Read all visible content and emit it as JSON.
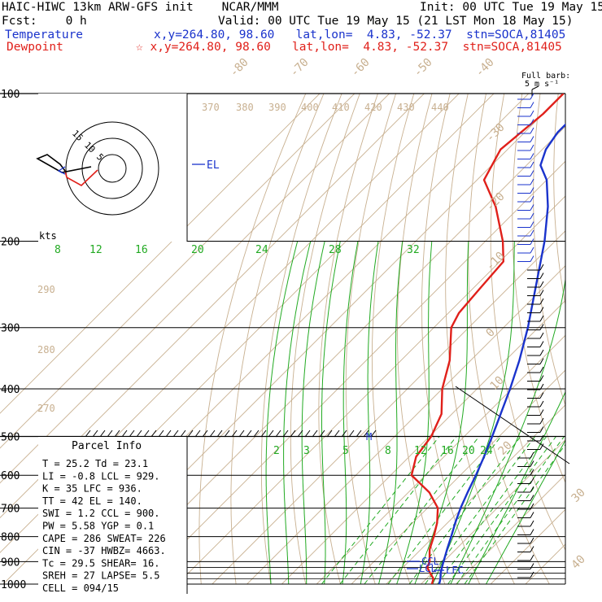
{
  "header": {
    "title": "HAIC-HIWC 13km ARW-GFS init    NCAR/MMM",
    "init": "Init: 00 UTC Tue 19 May 15",
    "fcst": "Fcst:    0 h",
    "valid": "Valid: 00 UTC Tue 19 May 15 (21 LST Mon 18 May 15)",
    "temperature_label": "Temperature",
    "temperature_info": "x,y=264.80, 98.60   lat,lon=  4.83, -52.37  stn=SOCA,81405",
    "dewpoint_label": "Dewpoint",
    "dewpoint_info": "☆ x,y=264.80, 98.60   lat,lon=  4.83, -52.37  stn=SOCA,81405",
    "colors": {
      "temperature": "#1a33cc",
      "dewpoint": "#e0201a",
      "moist_adiabat": "#22aa22",
      "isotherm": "#c8b090"
    }
  },
  "barb_legend": {
    "title": "Full barb:",
    "unit": "5 m s⁻¹"
  },
  "parcel_info": {
    "title": "Parcel Info",
    "rows": [
      "T   =   25.2  Td =  23.1",
      "LI  =   -0.8  LCL =  929.",
      "K   =     35  LFC =  936.",
      "TT  =     42  EL  =  140.",
      "SWI =    1.2  CCL =  900.",
      "PW  =   5.58  YGP =   0.1",
      "CAPE =   286  SWEAT=  226",
      "CIN  =   -37  HWBZ= 4663.",
      "Tc  =   29.5  SHEAR=  16.",
      "SREH =    27  LAPSE=  5.5",
      "CELL = 094/15"
    ]
  },
  "hodograph": {
    "rings": [
      "5",
      "10",
      "15"
    ],
    "unit": "kts"
  },
  "chart_data": {
    "type": "line",
    "title": "HAIC-HIWC 13km ARW-GFS init",
    "pressure_ticks": [
      "100",
      "200",
      "300",
      "400",
      "500",
      "600",
      "700",
      "800",
      "900",
      "1000"
    ],
    "mixing_ratio_labels_upper": [
      "8",
      "12",
      "16",
      "20",
      "24",
      "28",
      "32"
    ],
    "mixing_ratio_labels_lower": [
      "2",
      "3",
      "5",
      "8",
      "12",
      "16",
      "20",
      "24"
    ],
    "isotherm_labels": [
      "-80",
      "-70",
      "-60",
      "-50",
      "-40",
      "-30",
      "-20",
      "-10",
      "0",
      "10",
      "20",
      "30",
      "40"
    ],
    "theta_labels_top": [
      "370",
      "380",
      "390",
      "400",
      "410",
      "420",
      "430",
      "440"
    ],
    "theta_labels_left": [
      "290",
      "280",
      "270"
    ],
    "levels": {
      "EL": "EL",
      "CCL": "CCL",
      "LCL": "LCL",
      "LFC": "LFC",
      "M": "M"
    },
    "series": [
      {
        "name": "Temperature",
        "color": "#1a33cc",
        "points": [
          [
            1000,
            25.2
          ],
          [
            975,
            24.0
          ],
          [
            950,
            22.5
          ],
          [
            925,
            21.2
          ],
          [
            900,
            20.0
          ],
          [
            850,
            17.5
          ],
          [
            800,
            15.0
          ],
          [
            750,
            12.2
          ],
          [
            700,
            9.5
          ],
          [
            650,
            7.0
          ],
          [
            600,
            4.5
          ],
          [
            550,
            1.5
          ],
          [
            500,
            -2.0
          ],
          [
            450,
            -6.0
          ],
          [
            400,
            -10.5
          ],
          [
            350,
            -16.0
          ],
          [
            300,
            -23.0
          ],
          [
            250,
            -32.0
          ],
          [
            200,
            -43.0
          ],
          [
            170,
            -52.0
          ],
          [
            150,
            -60.0
          ],
          [
            140,
            -66.0
          ],
          [
            130,
            -69.0
          ],
          [
            120,
            -70.5
          ],
          [
            110,
            -70.5
          ],
          [
            100,
            -71.0
          ]
        ]
      },
      {
        "name": "Dewpoint",
        "color": "#e0201a",
        "points": [
          [
            1000,
            23.1
          ],
          [
            975,
            22.0
          ],
          [
            950,
            19.5
          ],
          [
            925,
            17.0
          ],
          [
            900,
            16.0
          ],
          [
            850,
            12.5
          ],
          [
            800,
            10.0
          ],
          [
            750,
            7.0
          ],
          [
            700,
            3.0
          ],
          [
            650,
            -4.0
          ],
          [
            600,
            -14.0
          ],
          [
            550,
            -18.0
          ],
          [
            500,
            -19.5
          ],
          [
            450,
            -23.0
          ],
          [
            400,
            -30.0
          ],
          [
            350,
            -36.0
          ],
          [
            300,
            -45.0
          ],
          [
            280,
            -47.0
          ],
          [
            250,
            -48.0
          ],
          [
            220,
            -49.0
          ],
          [
            200,
            -55.0
          ],
          [
            170,
            -67.0
          ],
          [
            150,
            -78.0
          ],
          [
            130,
            -82.0
          ],
          [
            110,
            -80.0
          ],
          [
            100,
            -80.0
          ]
        ]
      }
    ]
  }
}
